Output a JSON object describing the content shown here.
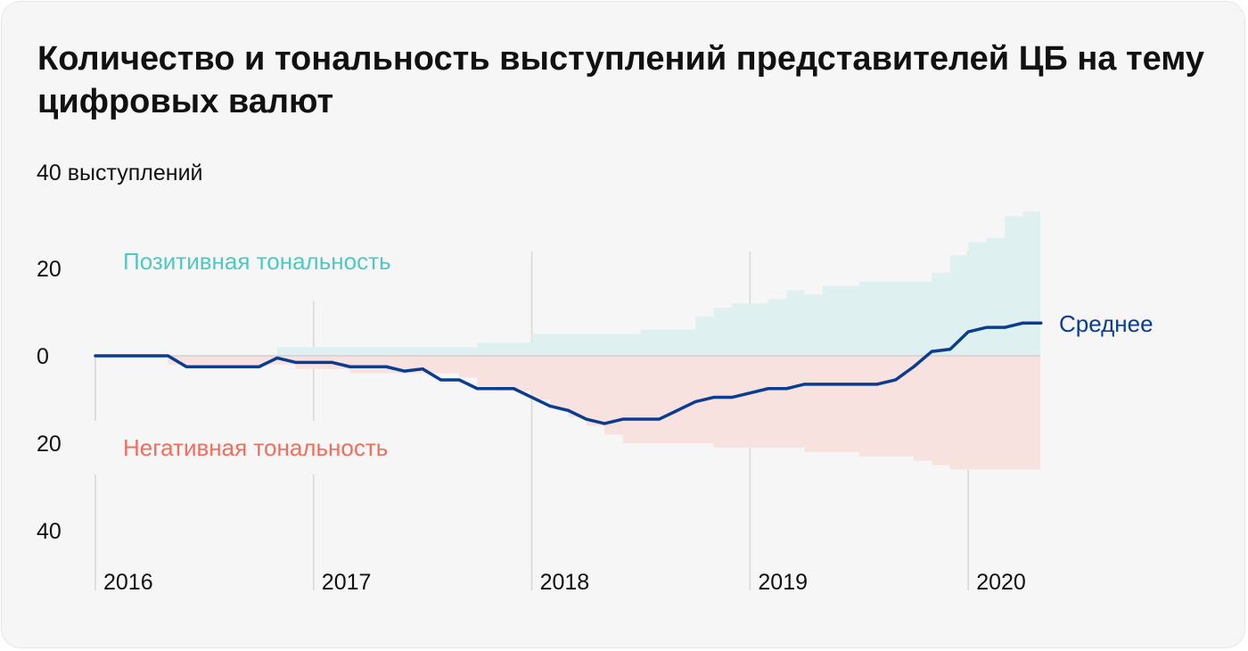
{
  "title": "Количество и тональность выступлений представителей ЦБ на тему цифровых валют",
  "chart_data": {
    "type": "area",
    "unit_label": "40 выступлений",
    "y_ticks": [
      {
        "value": 20,
        "label": "20"
      },
      {
        "value": 0,
        "label": "0"
      },
      {
        "value": -20,
        "label": "20"
      },
      {
        "value": -40,
        "label": "40"
      }
    ],
    "ylim": [
      -40,
      40
    ],
    "xlim": [
      2016.0,
      2020.33
    ],
    "x_ticks": [
      2016,
      2017,
      2018,
      2019,
      2020
    ],
    "x_tick_labels": [
      "2016",
      "2017",
      "2018",
      "2019",
      "2020"
    ],
    "colors": {
      "positive": "#dff0f0",
      "negative": "#f8e2e0",
      "average": "#0a3d8f",
      "positive_label": "#4fc8c2",
      "negative_label": "#ef6f5e"
    },
    "series": [
      {
        "name": "Позитивная тональность",
        "x": [
          2016.0,
          2016.833,
          2017.0,
          2017.75,
          2017.917,
          2018.0,
          2018.417,
          2018.5,
          2018.75,
          2018.833,
          2018.917,
          2019.0,
          2019.083,
          2019.167,
          2019.25,
          2019.333,
          2019.5,
          2019.75,
          2019.833,
          2019.917,
          2020.0,
          2020.083,
          2020.167,
          2020.25,
          2020.333
        ],
        "values": [
          0,
          2,
          2,
          3,
          3,
          5,
          5,
          6,
          9,
          11,
          12,
          12,
          13,
          15,
          14,
          16,
          17,
          17,
          19,
          23,
          26,
          27,
          32,
          33,
          33
        ]
      },
      {
        "name": "Негативная тональность",
        "x": [
          2016.0,
          2016.333,
          2016.833,
          2016.917,
          2017.0,
          2017.167,
          2017.5,
          2017.667,
          2017.75,
          2017.833,
          2018.0,
          2018.083,
          2018.167,
          2018.25,
          2018.333,
          2018.417,
          2018.75,
          2018.833,
          2019.0,
          2019.083,
          2019.25,
          2019.5,
          2019.75,
          2019.833,
          2019.917,
          2020.0,
          2020.333
        ],
        "values": [
          0,
          -2,
          -2,
          -3,
          -3,
          -4,
          -4,
          -5,
          -7,
          -8,
          -10,
          -12,
          -14,
          -16,
          -18,
          -20,
          -20,
          -21,
          -21,
          -21,
          -22,
          -23,
          -24,
          -25,
          -26,
          -26,
          -26
        ]
      },
      {
        "name": "Среднее",
        "x": [
          2016.0,
          2016.333,
          2016.417,
          2016.5,
          2016.75,
          2016.833,
          2016.917,
          2017.0,
          2017.083,
          2017.167,
          2017.25,
          2017.333,
          2017.417,
          2017.5,
          2017.583,
          2017.667,
          2017.75,
          2017.833,
          2017.917,
          2018.0,
          2018.083,
          2018.167,
          2018.25,
          2018.333,
          2018.417,
          2018.5,
          2018.583,
          2018.667,
          2018.75,
          2018.833,
          2018.917,
          2019.0,
          2019.083,
          2019.167,
          2019.25,
          2019.333,
          2019.417,
          2019.5,
          2019.583,
          2019.667,
          2019.75,
          2019.833,
          2019.917,
          2020.0,
          2020.083,
          2020.167,
          2020.25,
          2020.333
        ],
        "values": [
          0,
          0,
          -2.5,
          -2.5,
          -2.5,
          -0.5,
          -1.5,
          -1.5,
          -1.5,
          -2.5,
          -2.5,
          -2.5,
          -3.5,
          -3,
          -5.5,
          -5.5,
          -7.5,
          -7.5,
          -7.5,
          -9.5,
          -11.5,
          -12.5,
          -14.5,
          -15.5,
          -14.5,
          -14.5,
          -14.5,
          -12.5,
          -10.5,
          -9.5,
          -9.5,
          -8.5,
          -7.5,
          -7.5,
          -6.5,
          -6.5,
          -6.5,
          -6.5,
          -6.5,
          -5.5,
          -2.5,
          1,
          1.5,
          5.5,
          6.5,
          6.5,
          7.5,
          7.5
        ]
      }
    ],
    "annotations": {
      "positive": "Позитивная тональность",
      "negative": "Негативная тональность",
      "average": "Среднее"
    }
  }
}
